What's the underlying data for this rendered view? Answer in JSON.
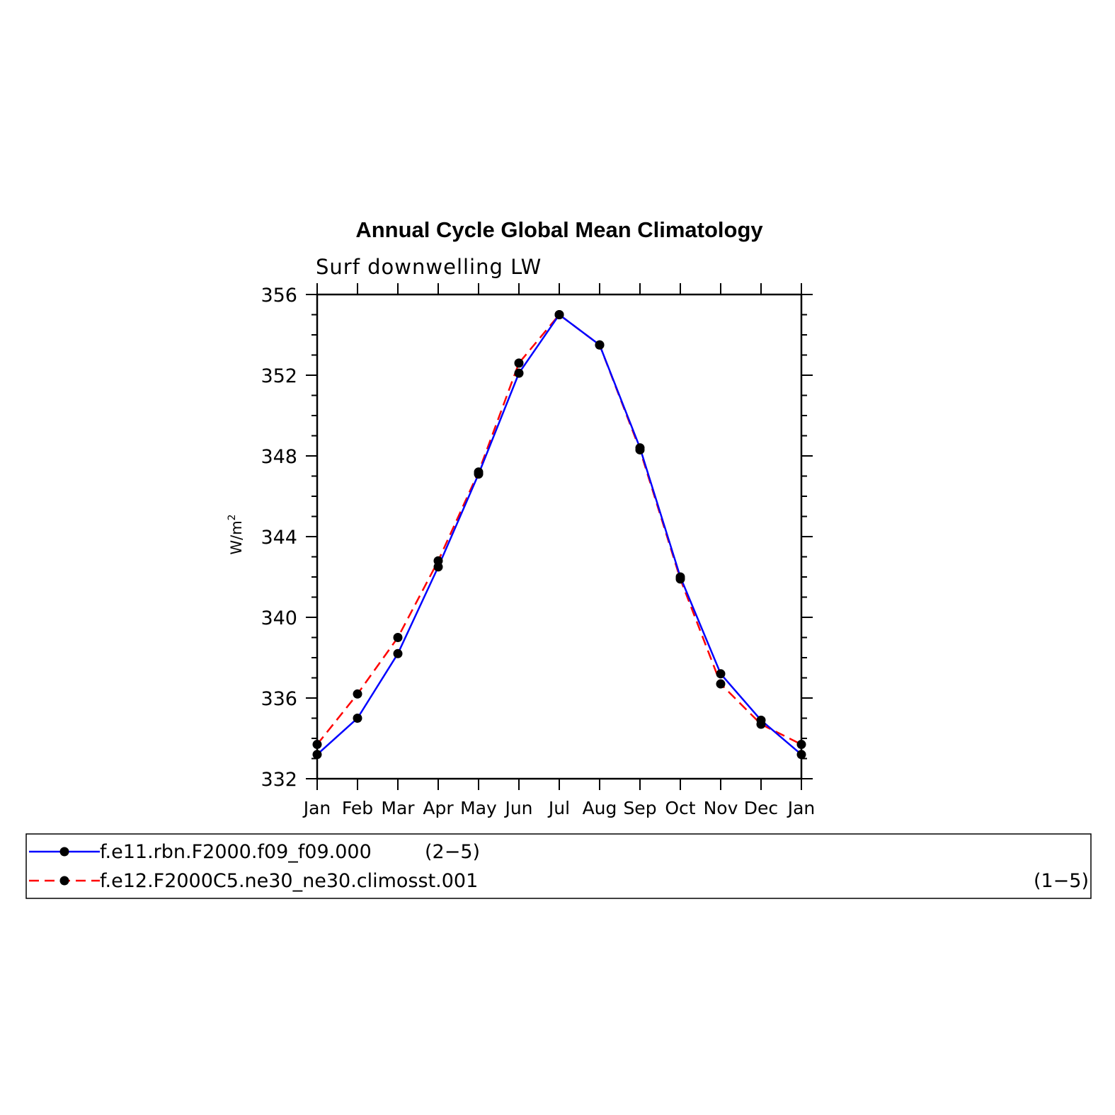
{
  "chart_data": {
    "type": "line",
    "title": "Annual Cycle Global Mean Climatology",
    "subtitle": "Surf downwelling LW",
    "xlabel": "",
    "ylabel": "W/m",
    "ylabel_superscript": "2",
    "categories": [
      "Jan",
      "Feb",
      "Mar",
      "Apr",
      "May",
      "Jun",
      "Jul",
      "Aug",
      "Sep",
      "Oct",
      "Nov",
      "Dec",
      "Jan"
    ],
    "ylim": [
      332,
      356
    ],
    "yticks": [
      332,
      336,
      340,
      344,
      348,
      352,
      356
    ],
    "grid": false,
    "legend_position": "bottom",
    "series": [
      {
        "name": "f.e11.rbn.F2000.f09_f09.000",
        "legend_suffix": "(2−5)",
        "color": "#0000ff",
        "dash": "solid",
        "values": [
          333.2,
          335.0,
          338.2,
          342.5,
          347.1,
          352.1,
          355.0,
          353.5,
          348.4,
          342.0,
          337.2,
          334.9,
          333.2
        ]
      },
      {
        "name": "f.e12.F2000C5.ne30_ne30.climosst.001",
        "legend_suffix": "(1−5)",
        "color": "#ff0000",
        "dash": "dashed",
        "values": [
          333.7,
          336.2,
          339.0,
          342.8,
          347.2,
          352.6,
          355.0,
          353.5,
          348.3,
          341.9,
          336.7,
          334.7,
          333.7
        ]
      }
    ]
  }
}
